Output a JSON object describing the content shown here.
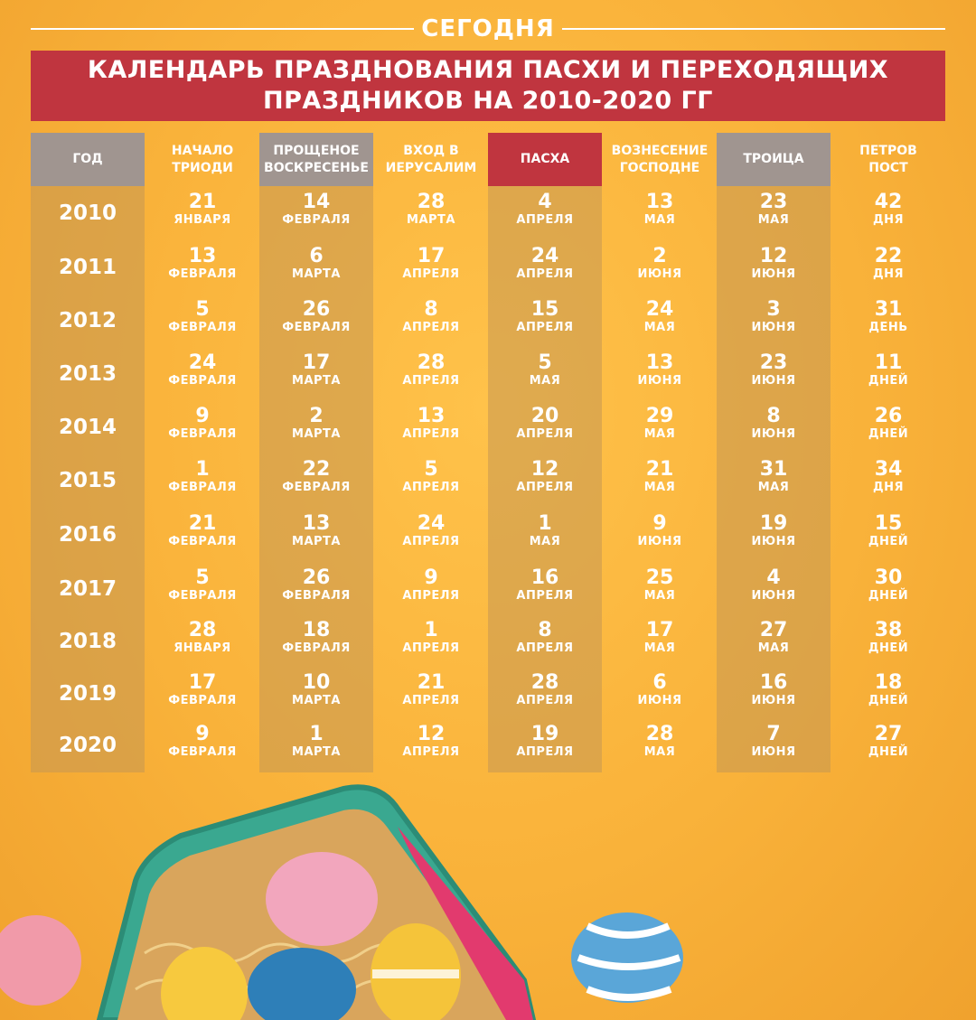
{
  "brand": "СЕГОДНЯ",
  "title_line1": "КАЛЕНДАРЬ ПРАЗДНОВАНИЯ ПАСХИ И ПЕРЕХОДЯЩИХ",
  "title_line2": "ПРАЗДНИКОВ НА 2010-2020 ГГ",
  "colors": {
    "banner": "#c0353f",
    "header_gray": "#a09590",
    "background": "#f9b23a"
  },
  "chart_data": {
    "type": "table",
    "columns": [
      {
        "line1": "ГОД",
        "line2": "",
        "style": "gray"
      },
      {
        "line1": "НАЧАЛО",
        "line2": "ТРИОДИ",
        "style": "none"
      },
      {
        "line1": "ПРОЩЕНОЕ",
        "line2": "ВОСКРЕСЕНЬЕ",
        "style": "gray"
      },
      {
        "line1": "ВХОД В",
        "line2": "ИЕРУСАЛИМ",
        "style": "none"
      },
      {
        "line1": "ПАСХА",
        "line2": "",
        "style": "red"
      },
      {
        "line1": "ВОЗНЕСЕНИЕ",
        "line2": "ГОСПОДНЕ",
        "style": "none"
      },
      {
        "line1": "ТРОИЦА",
        "line2": "",
        "style": "gray"
      },
      {
        "line1": "ПЕТРОВ",
        "line2": "ПОСТ",
        "style": "none"
      }
    ],
    "rows": [
      {
        "year": "2010",
        "cells": [
          [
            "21",
            "ЯНВАРЯ"
          ],
          [
            "14",
            "ФЕВРАЛЯ"
          ],
          [
            "28",
            "МАРТА"
          ],
          [
            "4",
            "АПРЕЛЯ"
          ],
          [
            "13",
            "МАЯ"
          ],
          [
            "23",
            "МАЯ"
          ],
          [
            "42",
            "ДНЯ"
          ]
        ]
      },
      {
        "year": "2011",
        "cells": [
          [
            "13",
            "ФЕВРАЛЯ"
          ],
          [
            "6",
            "МАРТА"
          ],
          [
            "17",
            "АПРЕЛЯ"
          ],
          [
            "24",
            "АПРЕЛЯ"
          ],
          [
            "2",
            "ИЮНЯ"
          ],
          [
            "12",
            "ИЮНЯ"
          ],
          [
            "22",
            "ДНЯ"
          ]
        ]
      },
      {
        "year": "2012",
        "cells": [
          [
            "5",
            "ФЕВРАЛЯ"
          ],
          [
            "26",
            "ФЕВРАЛЯ"
          ],
          [
            "8",
            "АПРЕЛЯ"
          ],
          [
            "15",
            "АПРЕЛЯ"
          ],
          [
            "24",
            "МАЯ"
          ],
          [
            "3",
            "ИЮНЯ"
          ],
          [
            "31",
            "ДЕНЬ"
          ]
        ]
      },
      {
        "year": "2013",
        "cells": [
          [
            "24",
            "ФЕВРАЛЯ"
          ],
          [
            "17",
            "МАРТА"
          ],
          [
            "28",
            "АПРЕЛЯ"
          ],
          [
            "5",
            "МАЯ"
          ],
          [
            "13",
            "ИЮНЯ"
          ],
          [
            "23",
            "ИЮНЯ"
          ],
          [
            "11",
            "ДНЕЙ"
          ]
        ]
      },
      {
        "year": "2014",
        "cells": [
          [
            "9",
            "ФЕВРАЛЯ"
          ],
          [
            "2",
            "МАРТА"
          ],
          [
            "13",
            "АПРЕЛЯ"
          ],
          [
            "20",
            "АПРЕЛЯ"
          ],
          [
            "29",
            "МАЯ"
          ],
          [
            "8",
            "ИЮНЯ"
          ],
          [
            "26",
            "ДНЕЙ"
          ]
        ]
      },
      {
        "year": "2015",
        "cells": [
          [
            "1",
            "ФЕВРАЛЯ"
          ],
          [
            "22",
            "ФЕВРАЛЯ"
          ],
          [
            "5",
            "АПРЕЛЯ"
          ],
          [
            "12",
            "АПРЕЛЯ"
          ],
          [
            "21",
            "МАЯ"
          ],
          [
            "31",
            "МАЯ"
          ],
          [
            "34",
            "ДНЯ"
          ]
        ]
      },
      {
        "year": "2016",
        "cells": [
          [
            "21",
            "ФЕВРАЛЯ"
          ],
          [
            "13",
            "МАРТА"
          ],
          [
            "24",
            "АПРЕЛЯ"
          ],
          [
            "1",
            "МАЯ"
          ],
          [
            "9",
            "ИЮНЯ"
          ],
          [
            "19",
            "ИЮНЯ"
          ],
          [
            "15",
            "ДНЕЙ"
          ]
        ]
      },
      {
        "year": "2017",
        "cells": [
          [
            "5",
            "ФЕВРАЛЯ"
          ],
          [
            "26",
            "ФЕВРАЛЯ"
          ],
          [
            "9",
            "АПРЕЛЯ"
          ],
          [
            "16",
            "АПРЕЛЯ"
          ],
          [
            "25",
            "МАЯ"
          ],
          [
            "4",
            "ИЮНЯ"
          ],
          [
            "30",
            "ДНЕЙ"
          ]
        ]
      },
      {
        "year": "2018",
        "cells": [
          [
            "28",
            "ЯНВАРЯ"
          ],
          [
            "18",
            "ФЕВРАЛЯ"
          ],
          [
            "1",
            "АПРЕЛЯ"
          ],
          [
            "8",
            "АПРЕЛЯ"
          ],
          [
            "17",
            "МАЯ"
          ],
          [
            "27",
            "МАЯ"
          ],
          [
            "38",
            "ДНЕЙ"
          ]
        ]
      },
      {
        "year": "2019",
        "cells": [
          [
            "17",
            "ФЕВРАЛЯ"
          ],
          [
            "10",
            "МАРТА"
          ],
          [
            "21",
            "АПРЕЛЯ"
          ],
          [
            "28",
            "АПРЕЛЯ"
          ],
          [
            "6",
            "ИЮНЯ"
          ],
          [
            "16",
            "ИЮНЯ"
          ],
          [
            "18",
            "ДНЕЙ"
          ]
        ]
      },
      {
        "year": "2020",
        "cells": [
          [
            "9",
            "ФЕВРАЛЯ"
          ],
          [
            "1",
            "МАРТА"
          ],
          [
            "12",
            "АПРЕЛЯ"
          ],
          [
            "19",
            "АПРЕЛЯ"
          ],
          [
            "28",
            "МАЯ"
          ],
          [
            "7",
            "ИЮНЯ"
          ],
          [
            "27",
            "ДНЕЙ"
          ]
        ]
      }
    ]
  }
}
